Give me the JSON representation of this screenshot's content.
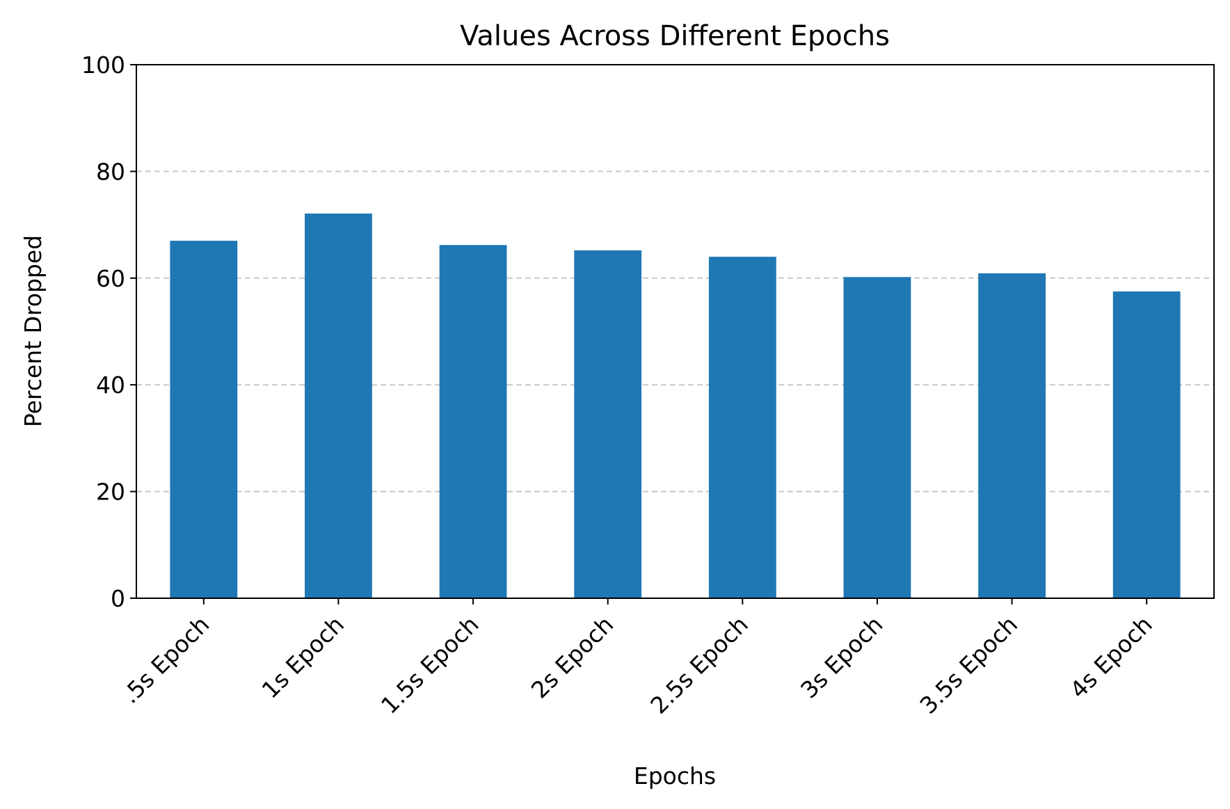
{
  "chart_data": {
    "type": "bar",
    "title": "Values Across Different Epochs",
    "xlabel": "Epochs",
    "ylabel": "Percent Dropped",
    "categories": [
      ".5s Epoch",
      "1s Epoch",
      "1.5s Epoch",
      "2s Epoch",
      "2.5s Epoch",
      "3s Epoch",
      "3.5s Epoch",
      "4s Epoch"
    ],
    "values": [
      67.0,
      72.1,
      66.2,
      65.2,
      64.0,
      60.2,
      60.9,
      57.5
    ],
    "ylim": [
      0,
      100
    ],
    "yticks": [
      0,
      20,
      40,
      60,
      80,
      100
    ],
    "grid": "y-axis dashed",
    "bar_color": "#1f77b4",
    "grid_color": "#c8c8c8",
    "x_tick_rotation_deg": 45
  }
}
